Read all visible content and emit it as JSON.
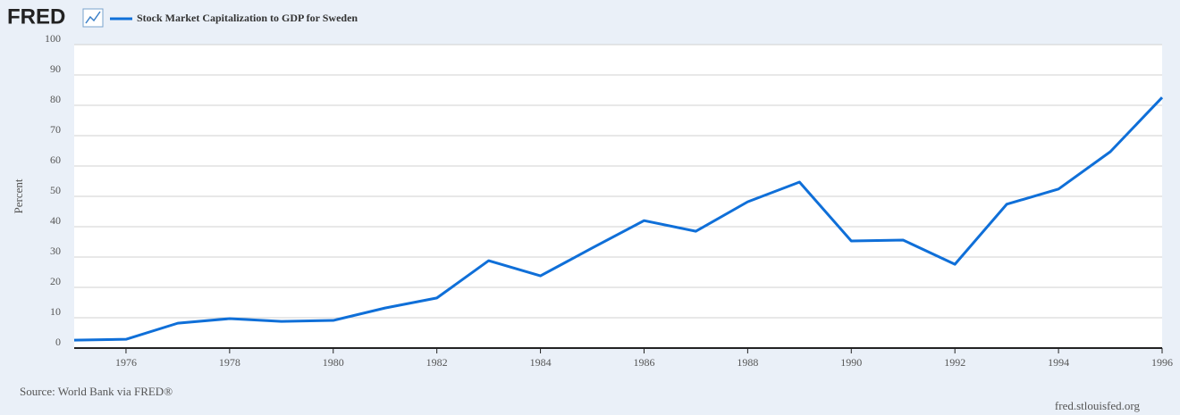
{
  "chart_data": {
    "type": "line",
    "logo": "FRED",
    "ylabel": "Percent",
    "source": "Source: World Bank via FRED®",
    "credit": "fred.stlouisfed.org",
    "x": [
      1975,
      1976,
      1977,
      1978,
      1979,
      1980,
      1981,
      1982,
      1983,
      1984,
      1985,
      1986,
      1987,
      1988,
      1989,
      1990,
      1991,
      1992,
      1993,
      1994,
      1995,
      1996
    ],
    "series": [
      {
        "name": "Stock Market Capitalization to GDP for Sweden",
        "color": "#0f6fd8",
        "values": [
          2.6,
          2.9,
          8.2,
          9.7,
          8.8,
          9.1,
          13.2,
          16.5,
          28.8,
          23.8,
          33.0,
          42.0,
          38.5,
          48.2,
          54.7,
          35.3,
          35.6,
          27.6,
          47.4,
          52.4,
          64.7,
          82.6
        ]
      }
    ],
    "xlim": [
      1975,
      1996
    ],
    "xticks": [
      1976,
      1978,
      1980,
      1982,
      1984,
      1986,
      1988,
      1990,
      1992,
      1994,
      1996
    ],
    "ylim": [
      0,
      100
    ],
    "yticks": [
      0,
      10,
      20,
      30,
      40,
      50,
      60,
      70,
      80,
      90,
      100
    ],
    "grid": true
  }
}
